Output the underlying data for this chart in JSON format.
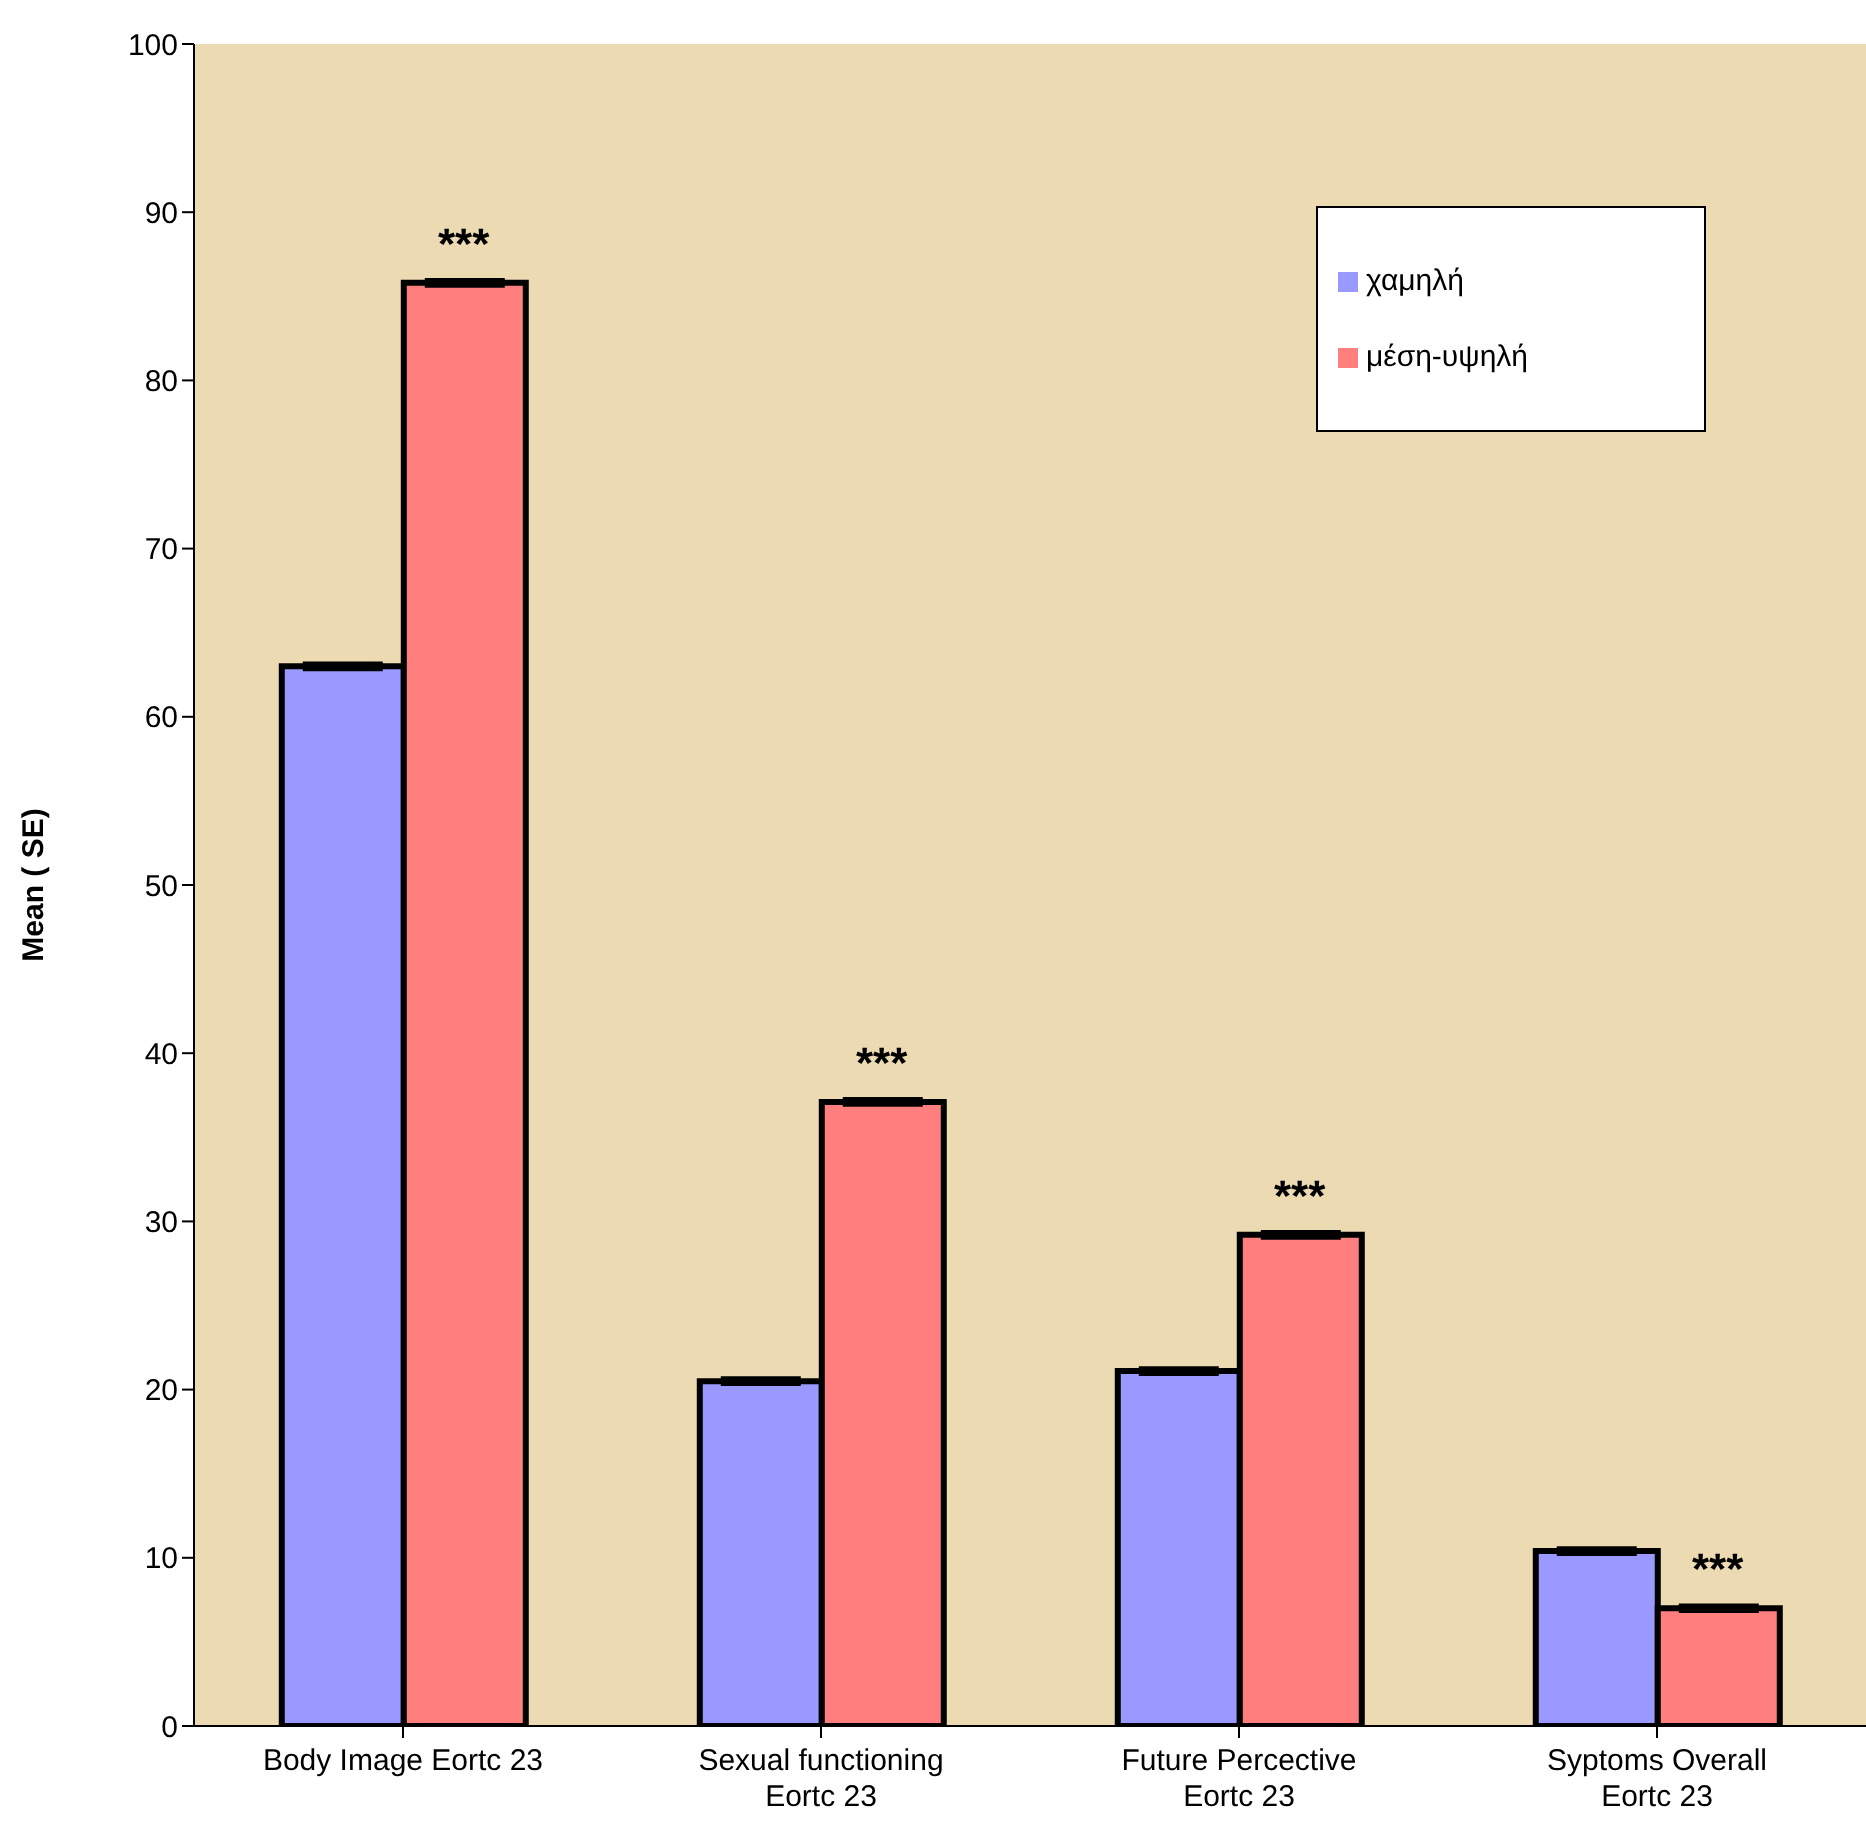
{
  "chart_data": {
    "type": "bar",
    "ylabel": "Mean ( SE)",
    "categories": [
      "Body Image Eortc 23",
      "Sexual functioning Eortc 23",
      "Future Percective Eortc 23",
      "Syptoms Overall Eortc 23"
    ],
    "series": [
      {
        "name": "χαμηλή",
        "color": "#9999ff",
        "values": [
          63,
          20.5,
          21.1,
          10.4
        ],
        "errors": [
          0.2,
          0.2,
          0.2,
          0.2
        ]
      },
      {
        "name": "μέση-υψηλή",
        "color": "#ff7f7f",
        "values": [
          85.8,
          37.1,
          29.2,
          7
        ],
        "errors": [
          0.2,
          0.2,
          0.2,
          0.2
        ]
      }
    ],
    "ylim": [
      0,
      100
    ],
    "yticks": [
      0,
      10,
      20,
      30,
      40,
      50,
      60,
      70,
      80,
      90,
      100
    ],
    "grid": false,
    "legend": "top right",
    "annotations": [
      {
        "text": "***",
        "x": "Body Image Eortc 23",
        "y": 85.8
      },
      {
        "text": "***",
        "x": "Sexual functioning Eortc 23",
        "y": 37.1
      },
      {
        "text": "***",
        "x": "Future Percective Eortc 23",
        "y": 29.2
      },
      {
        "text": "***",
        "x": "Syptoms Overall Eortc 23",
        "y": 7
      }
    ]
  }
}
